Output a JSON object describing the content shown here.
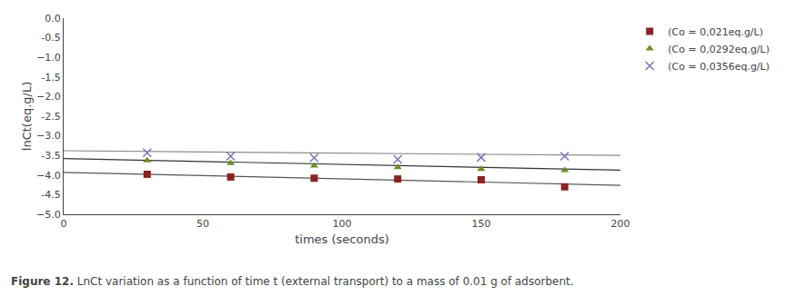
{
  "chart_data": {
    "type": "scatter",
    "xlabel": "times (seconds)",
    "ylabel": "lnCt(eq.g/L)",
    "xlim": [
      0,
      200
    ],
    "ylim": [
      -5,
      0
    ],
    "xticks": [
      0,
      50,
      100,
      150,
      200
    ],
    "yticks": [
      {
        "value": 0,
        "label": "0.0"
      },
      -0.5,
      {
        "value": -1,
        "label": "−1.0"
      },
      -1.5,
      {
        "value": -2,
        "label": "−2.0"
      },
      -2.5,
      {
        "value": -3,
        "label": "−3.0"
      },
      -3.5,
      {
        "value": -4,
        "label": "−4.0"
      },
      -4.5,
      {
        "value": -5,
        "label": "−5.0"
      }
    ],
    "grid": false,
    "legend": "upper right",
    "annotations": [
      {
        "text": "Figure 12.",
        "weight": "bold"
      },
      {
        "text": "LnCt variation as a function of time t (external transport) to a mass of 0.01 g of adsorbent."
      }
    ],
    "series": [
      {
        "color": "#4472C4",
        "marker": "diamond",
        "x": [],
        "values": []
      },
      {
        "name": "(Co = 0,021eq.g/L)",
        "color": "#8B2222",
        "marker": "square",
        "x": [
          30,
          60,
          90,
          120,
          150,
          180
        ],
        "values": [
          -3.98,
          -4.05,
          -4.08,
          -4.1,
          -4.12,
          -4.3
        ]
      },
      {
        "name": "(Co = 0,0292eq.g/L)",
        "color": "#6B8E23",
        "marker": "triangle-up",
        "x": [
          30,
          60,
          90,
          120,
          150,
          180
        ],
        "values": [
          -3.63,
          -3.7,
          -3.76,
          -3.8,
          -3.85,
          -3.88
        ]
      },
      {
        "name": "(Co = 0,0356eq.g/L)",
        "color": "#7777BB",
        "marker": "x",
        "x": [
          30,
          60,
          90,
          120,
          150,
          180
        ],
        "values": [
          -3.43,
          -3.52,
          -3.56,
          -3.6,
          -3.55,
          -3.52
        ]
      },
      {
        "type": "line",
        "color": "#555555",
        "x": [
          0,
          200
        ],
        "values": [
          -3.93,
          -4.26
        ]
      },
      {
        "type": "line",
        "color": "#333333",
        "x": [
          0,
          200
        ],
        "values": [
          -3.58,
          -3.876
        ]
      },
      {
        "type": "line",
        "color": "#888888",
        "x": [
          0,
          200
        ],
        "values": [
          -3.38,
          -3.5
        ]
      }
    ]
  }
}
